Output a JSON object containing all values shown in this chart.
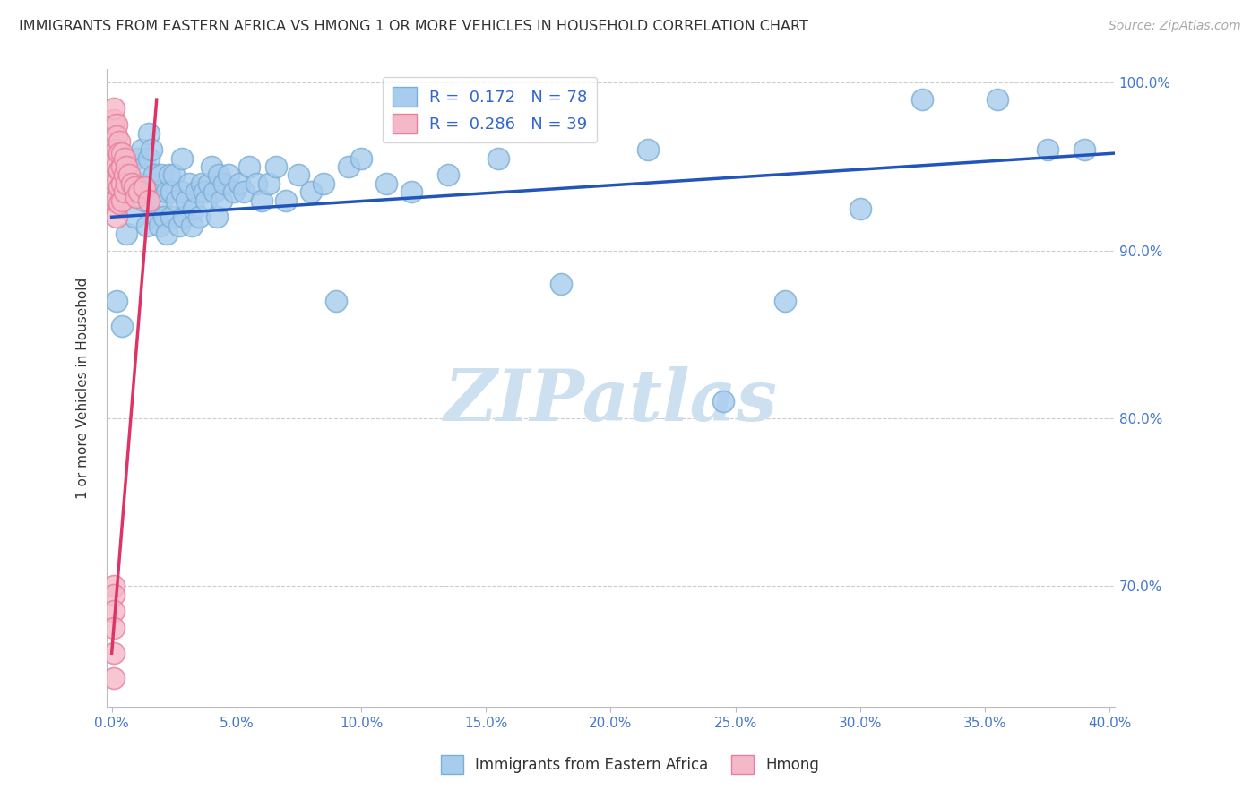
{
  "title": "IMMIGRANTS FROM EASTERN AFRICA VS HMONG 1 OR MORE VEHICLES IN HOUSEHOLD CORRELATION CHART",
  "source": "Source: ZipAtlas.com",
  "xlabel_blue": "Immigrants from Eastern Africa",
  "xlabel_pink": "Hmong",
  "ylabel": "1 or more Vehicles in Household",
  "xlim": [
    -0.002,
    0.402
  ],
  "ylim": [
    0.628,
    1.008
  ],
  "xticks": [
    0.0,
    0.05,
    0.1,
    0.15,
    0.2,
    0.25,
    0.3,
    0.35,
    0.4
  ],
  "ytick_shown": [
    0.7,
    0.8,
    0.9,
    1.0
  ],
  "ytick_labels": [
    "70.0%",
    "80.0%",
    "90.0%",
    "100.0%"
  ],
  "ytick_dashed": [
    0.7,
    0.8,
    0.9,
    1.0
  ],
  "R_blue": 0.172,
  "N_blue": 78,
  "R_pink": 0.286,
  "N_pink": 39,
  "blue_color": "#a8ccee",
  "blue_edge": "#7bafd4",
  "pink_color": "#f5b8c8",
  "pink_edge": "#e87fa0",
  "trend_blue": "#2255bb",
  "trend_pink": "#dd3366",
  "background": "#ffffff",
  "watermark": "ZIPatlas",
  "watermark_color": "#cde0f0",
  "blue_scatter_x": [
    0.002,
    0.004,
    0.006,
    0.008,
    0.009,
    0.01,
    0.011,
    0.012,
    0.013,
    0.013,
    0.014,
    0.015,
    0.015,
    0.016,
    0.016,
    0.017,
    0.018,
    0.018,
    0.019,
    0.02,
    0.02,
    0.021,
    0.022,
    0.022,
    0.023,
    0.024,
    0.024,
    0.025,
    0.026,
    0.027,
    0.028,
    0.028,
    0.029,
    0.03,
    0.031,
    0.032,
    0.033,
    0.034,
    0.035,
    0.036,
    0.037,
    0.038,
    0.039,
    0.04,
    0.041,
    0.042,
    0.043,
    0.044,
    0.045,
    0.047,
    0.049,
    0.051,
    0.053,
    0.055,
    0.058,
    0.06,
    0.063,
    0.066,
    0.07,
    0.075,
    0.08,
    0.085,
    0.09,
    0.095,
    0.1,
    0.11,
    0.12,
    0.135,
    0.155,
    0.18,
    0.215,
    0.245,
    0.27,
    0.3,
    0.325,
    0.355,
    0.375,
    0.39
  ],
  "blue_scatter_y": [
    0.87,
    0.855,
    0.91,
    0.935,
    0.92,
    0.955,
    0.94,
    0.96,
    0.93,
    0.95,
    0.915,
    0.955,
    0.97,
    0.94,
    0.96,
    0.945,
    0.92,
    0.935,
    0.915,
    0.93,
    0.945,
    0.92,
    0.91,
    0.935,
    0.945,
    0.92,
    0.935,
    0.945,
    0.93,
    0.915,
    0.935,
    0.955,
    0.92,
    0.93,
    0.94,
    0.915,
    0.925,
    0.935,
    0.92,
    0.94,
    0.935,
    0.93,
    0.94,
    0.95,
    0.935,
    0.92,
    0.945,
    0.93,
    0.94,
    0.945,
    0.935,
    0.94,
    0.935,
    0.95,
    0.94,
    0.93,
    0.94,
    0.95,
    0.93,
    0.945,
    0.935,
    0.94,
    0.87,
    0.95,
    0.955,
    0.94,
    0.935,
    0.945,
    0.955,
    0.88,
    0.96,
    0.81,
    0.87,
    0.925,
    0.99,
    0.99,
    0.96,
    0.96
  ],
  "pink_scatter_x": [
    0.001,
    0.001,
    0.001,
    0.001,
    0.001,
    0.001,
    0.001,
    0.001,
    0.001,
    0.001,
    0.001,
    0.002,
    0.002,
    0.002,
    0.002,
    0.002,
    0.002,
    0.002,
    0.003,
    0.003,
    0.003,
    0.003,
    0.003,
    0.004,
    0.004,
    0.004,
    0.004,
    0.005,
    0.005,
    0.005,
    0.006,
    0.006,
    0.007,
    0.008,
    0.009,
    0.01,
    0.011,
    0.013,
    0.015
  ],
  "pink_scatter_y": [
    0.96,
    0.968,
    0.975,
    0.978,
    0.985,
    0.965,
    0.955,
    0.945,
    0.94,
    0.935,
    0.93,
    0.975,
    0.968,
    0.96,
    0.95,
    0.94,
    0.93,
    0.92,
    0.965,
    0.958,
    0.948,
    0.938,
    0.928,
    0.958,
    0.95,
    0.94,
    0.93,
    0.955,
    0.945,
    0.935,
    0.95,
    0.94,
    0.945,
    0.94,
    0.938,
    0.932,
    0.935,
    0.938,
    0.93
  ],
  "pink_outlier_x": [
    0.001,
    0.001,
    0.001,
    0.001,
    0.001,
    0.001
  ],
  "pink_outlier_y": [
    0.7,
    0.695,
    0.685,
    0.675,
    0.66,
    0.645
  ],
  "blue_trend_x0": 0.0,
  "blue_trend_x1": 0.402,
  "blue_trend_y0": 0.92,
  "blue_trend_y1": 0.958,
  "pink_trend_x0": 0.0,
  "pink_trend_x1": 0.018,
  "pink_trend_y0": 0.66,
  "pink_trend_y1": 0.99
}
